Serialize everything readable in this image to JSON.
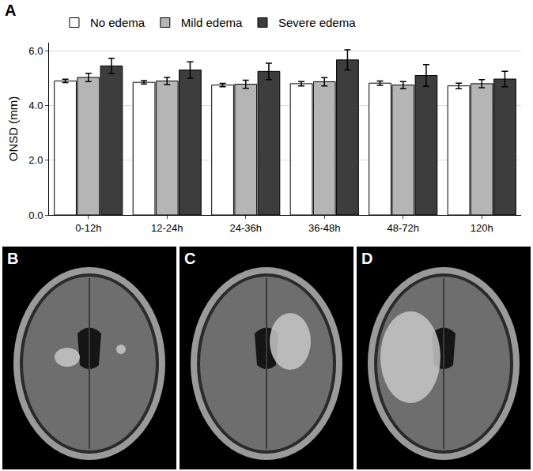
{
  "panel_labels": [
    "A",
    "B",
    "C",
    "D"
  ],
  "chart_data": {
    "type": "bar",
    "y_label": "ONSD (mm)",
    "categories": [
      "0-12h",
      "12-24h",
      "24-36h",
      "36-48h",
      "48-72h",
      "120h"
    ],
    "series": [
      {
        "name": "No edema",
        "color": "#ffffff",
        "values": [
          4.9,
          4.85,
          4.75,
          4.8,
          4.82,
          4.72
        ],
        "errors": [
          0.06,
          0.06,
          0.06,
          0.08,
          0.08,
          0.1
        ]
      },
      {
        "name": "Mild edema",
        "color": "#b5b5b5",
        "values": [
          5.03,
          4.9,
          4.78,
          4.87,
          4.75,
          4.8
        ],
        "errors": [
          0.15,
          0.13,
          0.15,
          0.15,
          0.13,
          0.15
        ]
      },
      {
        "name": "Severe edema",
        "color": "#3d3d3d",
        "values": [
          5.45,
          5.3,
          5.25,
          5.67,
          5.1,
          4.97
        ],
        "errors": [
          0.28,
          0.3,
          0.3,
          0.37,
          0.4,
          0.28
        ]
      }
    ],
    "ylim": [
      0,
      6.3
    ],
    "yticks": [
      {
        "value": 0,
        "label": "0.0"
      },
      {
        "value": 2,
        "label": "2.0"
      },
      {
        "value": 4,
        "label": "4.0"
      },
      {
        "value": 6,
        "label": "6.0"
      }
    ],
    "grid": true,
    "legend": "top"
  }
}
